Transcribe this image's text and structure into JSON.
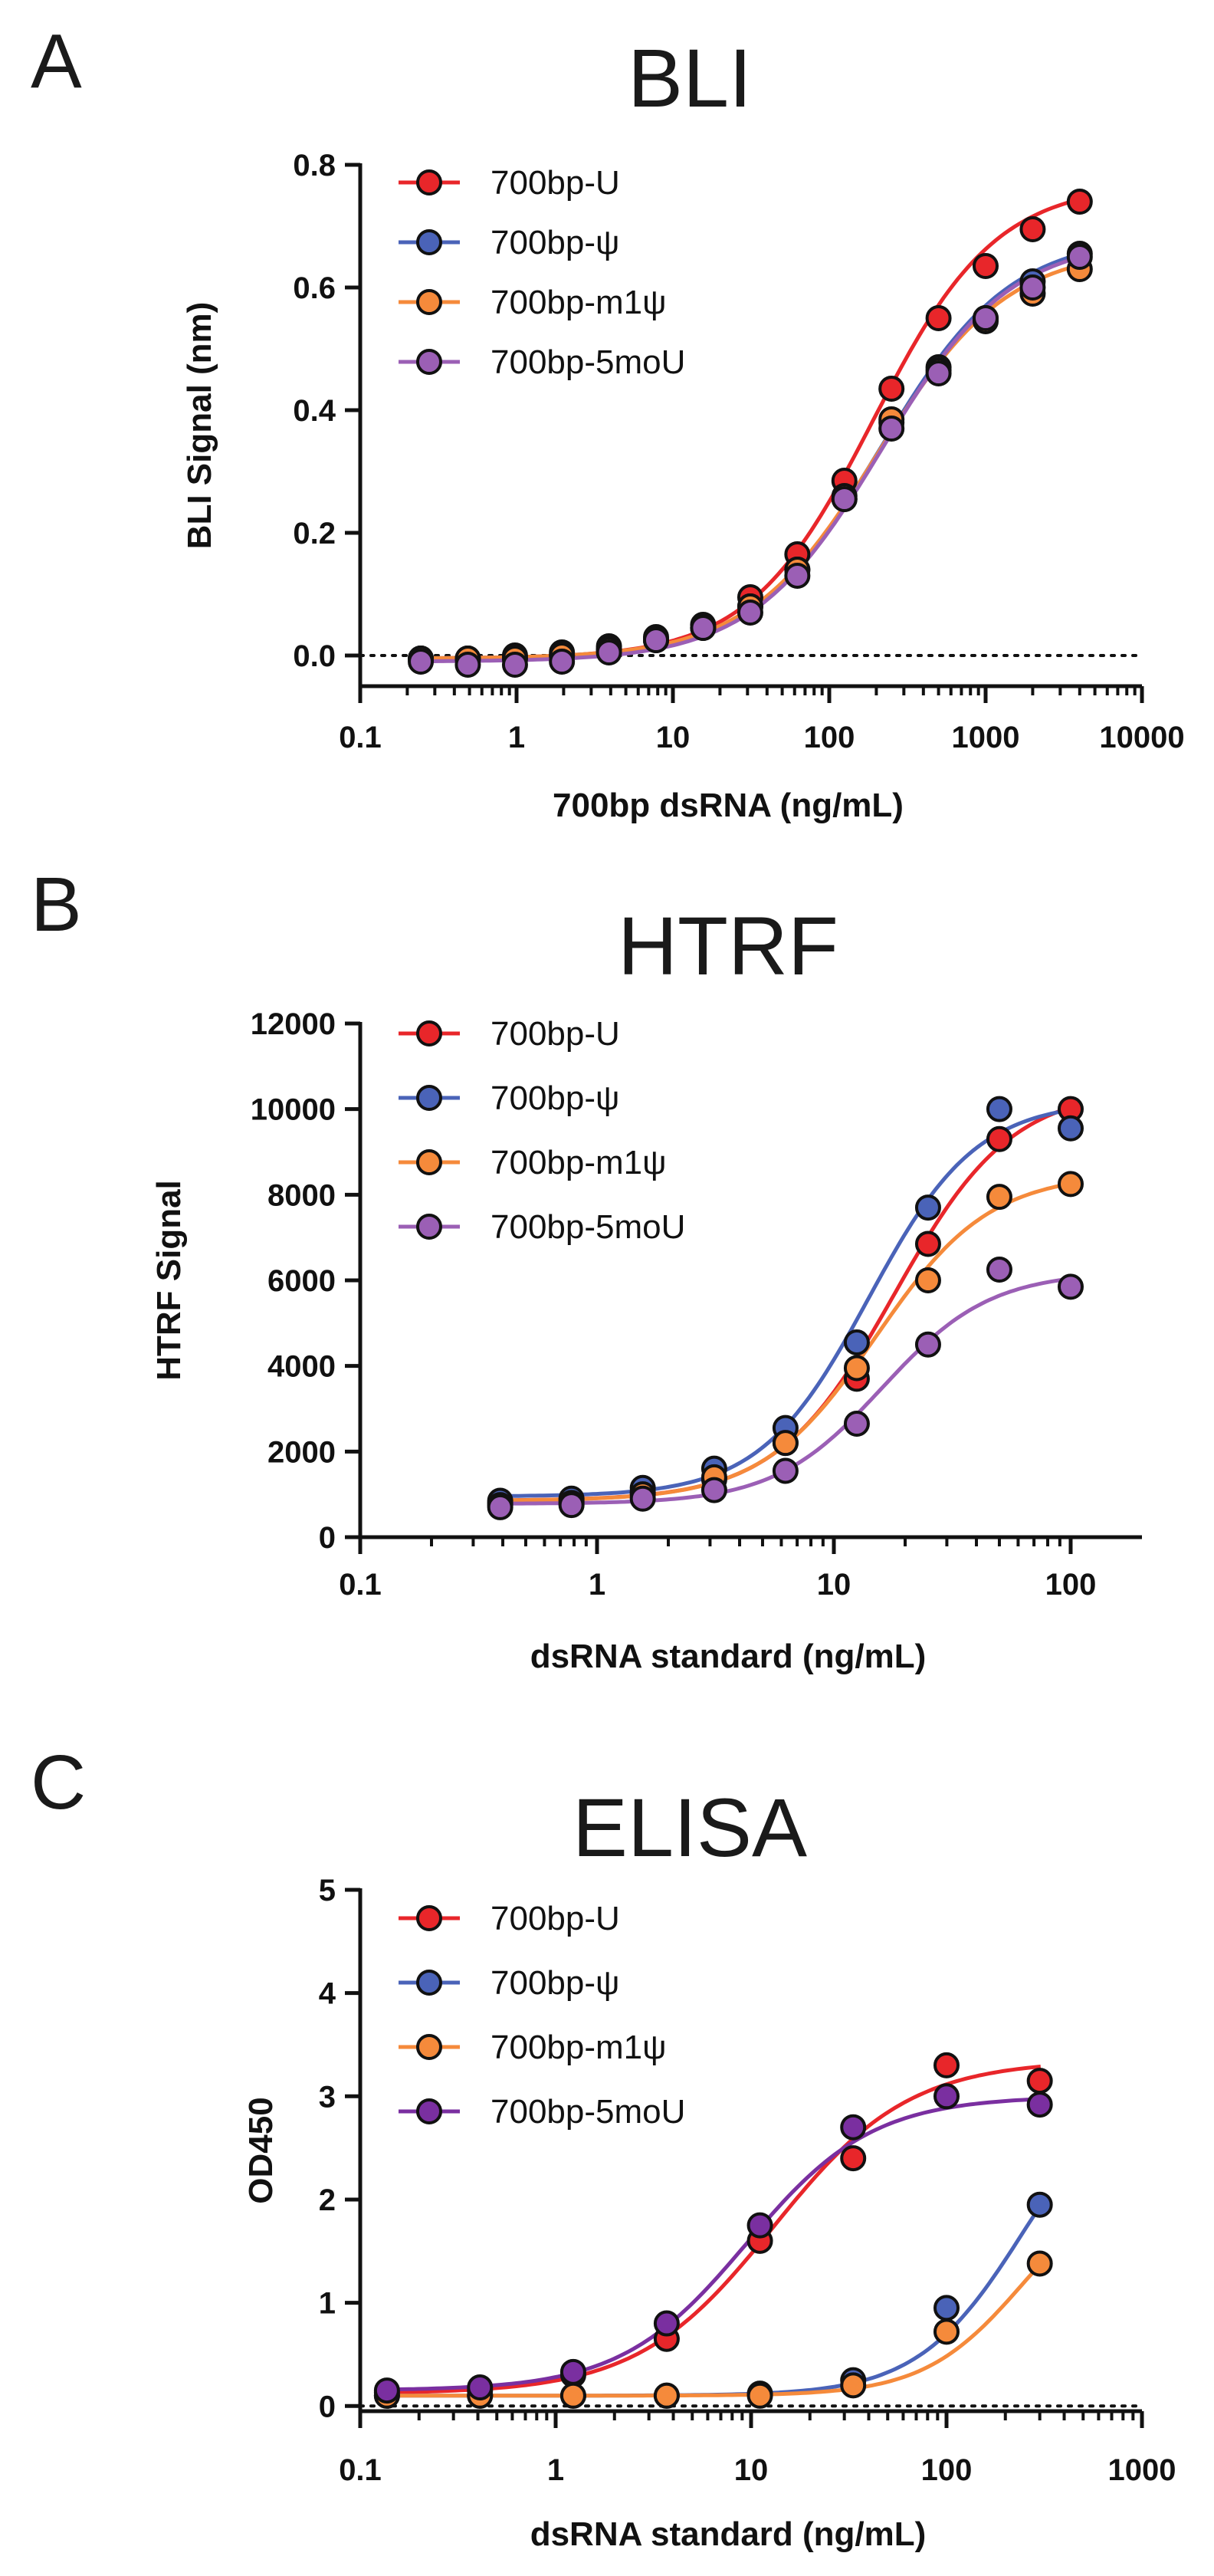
{
  "figure": {
    "panels": [
      "A",
      "B",
      "C"
    ]
  },
  "chart_data": [
    {
      "panel": "A",
      "type": "scatter",
      "title": "BLI",
      "xlabel": "700bp dsRNA (ng/mL)",
      "ylabel": "BLI Signal (nm)",
      "xscale": "log",
      "xlim": [
        0.1,
        10000
      ],
      "ylim": [
        -0.05,
        0.8
      ],
      "xticks": [
        0.1,
        1,
        10,
        100,
        1000,
        10000
      ],
      "xtick_labels": [
        "0.1",
        "1",
        "10",
        "100",
        "1000",
        "10000"
      ],
      "yticks": [
        0.0,
        0.2,
        0.4,
        0.6,
        0.8
      ],
      "ytick_labels": [
        "0.0",
        "0.2",
        "0.4",
        "0.6",
        "0.8"
      ],
      "zero_reference_line": "dotted",
      "legend_position": "top-left",
      "x": [
        0.244,
        0.488,
        0.977,
        1.95,
        3.9,
        7.8,
        15.6,
        31.25,
        62.5,
        125,
        250,
        500,
        1000,
        2000,
        4000
      ],
      "series": [
        {
          "name": "700bp-U",
          "color": "#e8262a",
          "fit": {
            "bottom": -0.005,
            "top": 0.77,
            "ec50": 190,
            "hill": 1.1
          },
          "values": [
            -0.005,
            -0.005,
            0.0,
            0.005,
            0.015,
            0.03,
            0.05,
            0.095,
            0.165,
            0.285,
            0.435,
            0.55,
            0.635,
            0.695,
            0.74
          ]
        },
        {
          "name": "700bp-ψ",
          "color": "#4a63b8",
          "fit": {
            "bottom": -0.005,
            "top": 0.685,
            "ec50": 215,
            "hill": 1.05
          },
          "values": [
            -0.005,
            -0.005,
            -0.005,
            0.0,
            0.01,
            0.025,
            0.045,
            0.08,
            0.14,
            0.255,
            0.38,
            0.47,
            0.55,
            0.61,
            0.655
          ]
        },
        {
          "name": "700bp-m1ψ",
          "color": "#f58a3b",
          "fit": {
            "bottom": -0.005,
            "top": 0.665,
            "ec50": 205,
            "hill": 1.05
          },
          "values": [
            -0.005,
            -0.005,
            -0.005,
            0.0,
            0.01,
            0.025,
            0.045,
            0.08,
            0.14,
            0.26,
            0.385,
            0.465,
            0.545,
            0.59,
            0.63
          ]
        },
        {
          "name": "700bp-5moU",
          "color": "#9b5fb5",
          "fit": {
            "bottom": -0.01,
            "top": 0.68,
            "ec50": 215,
            "hill": 1.05
          },
          "values": [
            -0.01,
            -0.015,
            -0.015,
            -0.01,
            0.005,
            0.025,
            0.045,
            0.07,
            0.13,
            0.255,
            0.37,
            0.46,
            0.55,
            0.6,
            0.65
          ]
        }
      ]
    },
    {
      "panel": "B",
      "type": "scatter",
      "title": "HTRF",
      "xlabel": "dsRNA standard (ng/mL)",
      "ylabel": "HTRF Signal",
      "xscale": "log",
      "xlim": [
        0.1,
        200
      ],
      "ylim": [
        0,
        12000
      ],
      "xticks": [
        0.1,
        1,
        10,
        100
      ],
      "xtick_labels": [
        "0.1",
        "1",
        "10",
        "100"
      ],
      "yticks": [
        0,
        2000,
        4000,
        6000,
        8000,
        10000,
        12000
      ],
      "ytick_labels": [
        "0",
        "2000",
        "4000",
        "6000",
        "8000",
        "10000",
        "12000"
      ],
      "legend_position": "top-left",
      "x": [
        0.39,
        0.78,
        1.56,
        3.125,
        6.25,
        12.5,
        25,
        50,
        100
      ],
      "series": [
        {
          "name": "700bp-U",
          "color": "#e8262a",
          "fit": {
            "bottom": 850,
            "top": 10500,
            "ec50": 18,
            "hill": 1.75
          },
          "values": [
            800,
            850,
            1050,
            1350,
            2200,
            3700,
            6850,
            9300,
            10000
          ]
        },
        {
          "name": "700bp-ψ",
          "color": "#4a63b8",
          "fit": {
            "bottom": 950,
            "top": 10200,
            "ec50": 14,
            "hill": 1.9
          },
          "values": [
            850,
            900,
            1150,
            1600,
            2550,
            4550,
            7700,
            10000,
            9550
          ]
        },
        {
          "name": "700bp-m1ψ",
          "color": "#f58a3b",
          "fit": {
            "bottom": 850,
            "top": 8500,
            "ec50": 15,
            "hill": 1.8
          },
          "values": [
            750,
            800,
            1000,
            1400,
            2200,
            3950,
            6000,
            7950,
            8250
          ]
        },
        {
          "name": "700bp-5moU",
          "color": "#9b5fb5",
          "fit": {
            "bottom": 780,
            "top": 6200,
            "ec50": 16,
            "hill": 1.9
          },
          "values": [
            700,
            750,
            900,
            1100,
            1550,
            2650,
            4500,
            6250,
            5850
          ]
        }
      ]
    },
    {
      "panel": "C",
      "type": "scatter",
      "title": "ELISA",
      "xlabel": "dsRNA standard (ng/mL)",
      "ylabel": "OD450",
      "xscale": "log",
      "xlim": [
        0.1,
        1000
      ],
      "ylim": [
        -0.05,
        5
      ],
      "xticks": [
        0.1,
        1,
        10,
        100,
        1000
      ],
      "xtick_labels": [
        "0.1",
        "1",
        "10",
        "100",
        "1000"
      ],
      "yticks": [
        0,
        1,
        2,
        3,
        4,
        5
      ],
      "ytick_labels": [
        "0",
        "1",
        "2",
        "3",
        "4",
        "5"
      ],
      "zero_reference_line": "dotted",
      "legend_position": "top-left",
      "x": [
        0.137,
        0.41,
        1.23,
        3.7,
        11.1,
        33.3,
        100,
        300
      ],
      "series": [
        {
          "name": "700bp-U",
          "color": "#e8262a",
          "fit": {
            "bottom": 0.12,
            "top": 3.35,
            "ec50": 13,
            "hill": 1.25
          },
          "values": [
            0.13,
            0.15,
            0.3,
            0.65,
            1.6,
            2.4,
            3.3,
            3.15
          ]
        },
        {
          "name": "700bp-ψ",
          "color": "#4a63b8",
          "fit": {
            "bottom": 0.1,
            "top": 3.3,
            "ec50": 250,
            "hill": 1.6
          },
          "values": [
            0.1,
            0.1,
            0.1,
            0.1,
            0.12,
            0.25,
            0.95,
            1.95
          ]
        },
        {
          "name": "700bp-m1ψ",
          "color": "#f58a3b",
          "fit": {
            "bottom": 0.1,
            "top": 2.3,
            "ec50": 250,
            "hill": 1.7
          },
          "values": [
            0.1,
            0.1,
            0.1,
            0.1,
            0.1,
            0.2,
            0.72,
            1.38
          ]
        },
        {
          "name": "700bp-5moU",
          "color": "#7a2fa0",
          "fit": {
            "bottom": 0.15,
            "top": 3.0,
            "ec50": 9.5,
            "hill": 1.35
          },
          "values": [
            0.15,
            0.18,
            0.33,
            0.8,
            1.75,
            2.7,
            3.0,
            2.92
          ]
        }
      ]
    }
  ]
}
